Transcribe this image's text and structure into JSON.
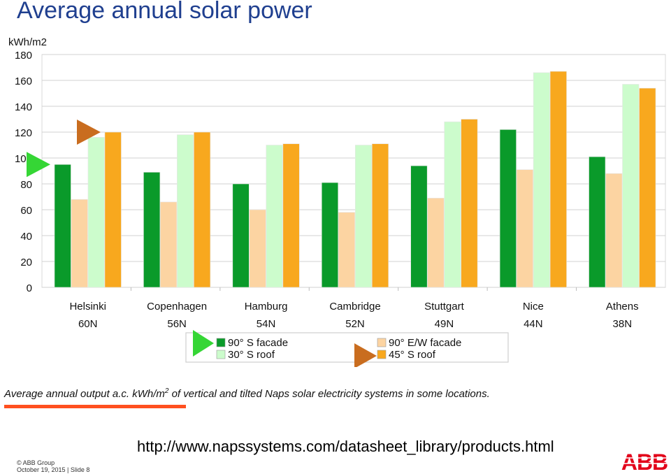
{
  "title": "Average annual solar power",
  "caption": {
    "prefix": "Average annual output a.c. kWh/m",
    "superscript": "2",
    "suffix": " of vertical and tilted Naps solar electricity systems in some locations."
  },
  "url": "http://www.napssystems.com/datasheet_library/products.html",
  "footer": {
    "copyright": "© ABB Group",
    "date_slide": "October 19, 2015 | Slide 8"
  },
  "logo": {
    "text": "ABB",
    "color": "#e2001a"
  },
  "chart_data": {
    "type": "bar",
    "ylabel": "kWh/m2",
    "ylim": [
      0,
      180
    ],
    "yticks": [
      0,
      20,
      40,
      60,
      80,
      100,
      120,
      140,
      160,
      180
    ],
    "grid": true,
    "categories": [
      "Helsinki",
      "Copenhagen",
      "Hamburg",
      "Cambridge",
      "Stuttgart",
      "Nice",
      "Athens"
    ],
    "sublabels": [
      "60N",
      "56N",
      "54N",
      "52N",
      "49N",
      "44N",
      "38N"
    ],
    "legend_placement": "bottom",
    "series": [
      {
        "name": "90° S facade",
        "color": "#0a9a2a",
        "values": [
          95,
          89,
          80,
          81,
          94,
          122,
          101
        ]
      },
      {
        "name": "90° E/W facade",
        "color": "#fcd4a2",
        "values": [
          68,
          66,
          60,
          58,
          69,
          91,
          88
        ]
      },
      {
        "name": "30° S roof",
        "color": "#ccfccc",
        "values": [
          116,
          118,
          110,
          110,
          128,
          166,
          157
        ]
      },
      {
        "name": "45° S roof",
        "color": "#f8a81e",
        "values": [
          120,
          120,
          111,
          111,
          130,
          167,
          154
        ]
      }
    ],
    "markers": [
      {
        "shape": "triangle-right",
        "color": "#35d635",
        "value": 95,
        "category": "Helsinki"
      },
      {
        "shape": "triangle-right",
        "color": "#c96d1f",
        "value": 120,
        "category": "Helsinki"
      }
    ]
  }
}
